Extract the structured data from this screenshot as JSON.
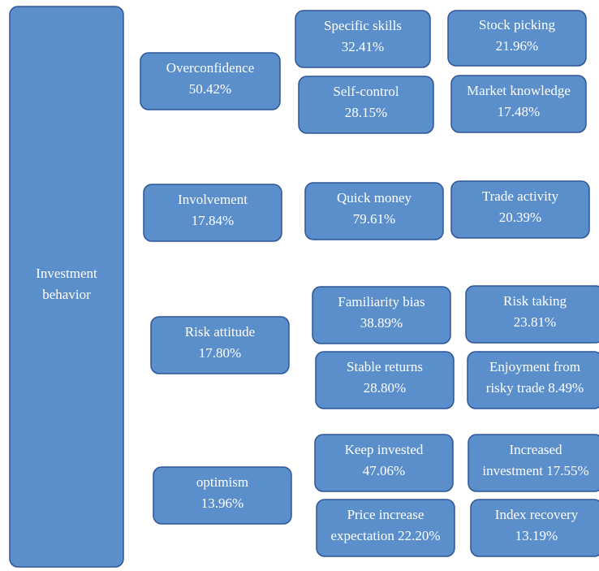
{
  "root": {
    "lines": [
      "Investment",
      "behavior"
    ]
  },
  "boxes": [
    {
      "lines": [
        "Overconfidence",
        "50.42%"
      ]
    },
    {
      "lines": [
        "Specific skills",
        "32.41%"
      ]
    },
    {
      "lines": [
        "Stock picking",
        "21.96%"
      ]
    },
    {
      "lines": [
        "Self-control",
        "28.15%"
      ]
    },
    {
      "lines": [
        "Market knowledge",
        "17.48%"
      ]
    },
    {
      "lines": [
        "Involvement",
        "17.84%"
      ]
    },
    {
      "lines": [
        "Quick money",
        "79.61%"
      ]
    },
    {
      "lines": [
        "Trade activity",
        "20.39%"
      ]
    },
    {
      "lines": [
        "Risk attitude",
        "17.80%"
      ]
    },
    {
      "lines": [
        "Familiarity bias",
        "38.89%"
      ]
    },
    {
      "lines": [
        "Risk taking",
        "23.81%"
      ]
    },
    {
      "lines": [
        "Stable returns",
        "28.80%"
      ]
    },
    {
      "lines": [
        "Enjoyment from",
        "risky trade 8.49%"
      ]
    },
    {
      "lines": [
        "optimism",
        "13.96%"
      ]
    },
    {
      "lines": [
        "Keep invested",
        "47.06%"
      ]
    },
    {
      "lines": [
        "Increased",
        "investment 17.55%"
      ]
    },
    {
      "lines": [
        "Price increase",
        "expectation 22.20%"
      ]
    },
    {
      "lines": [
        "Index recovery",
        "13.19%"
      ]
    }
  ]
}
